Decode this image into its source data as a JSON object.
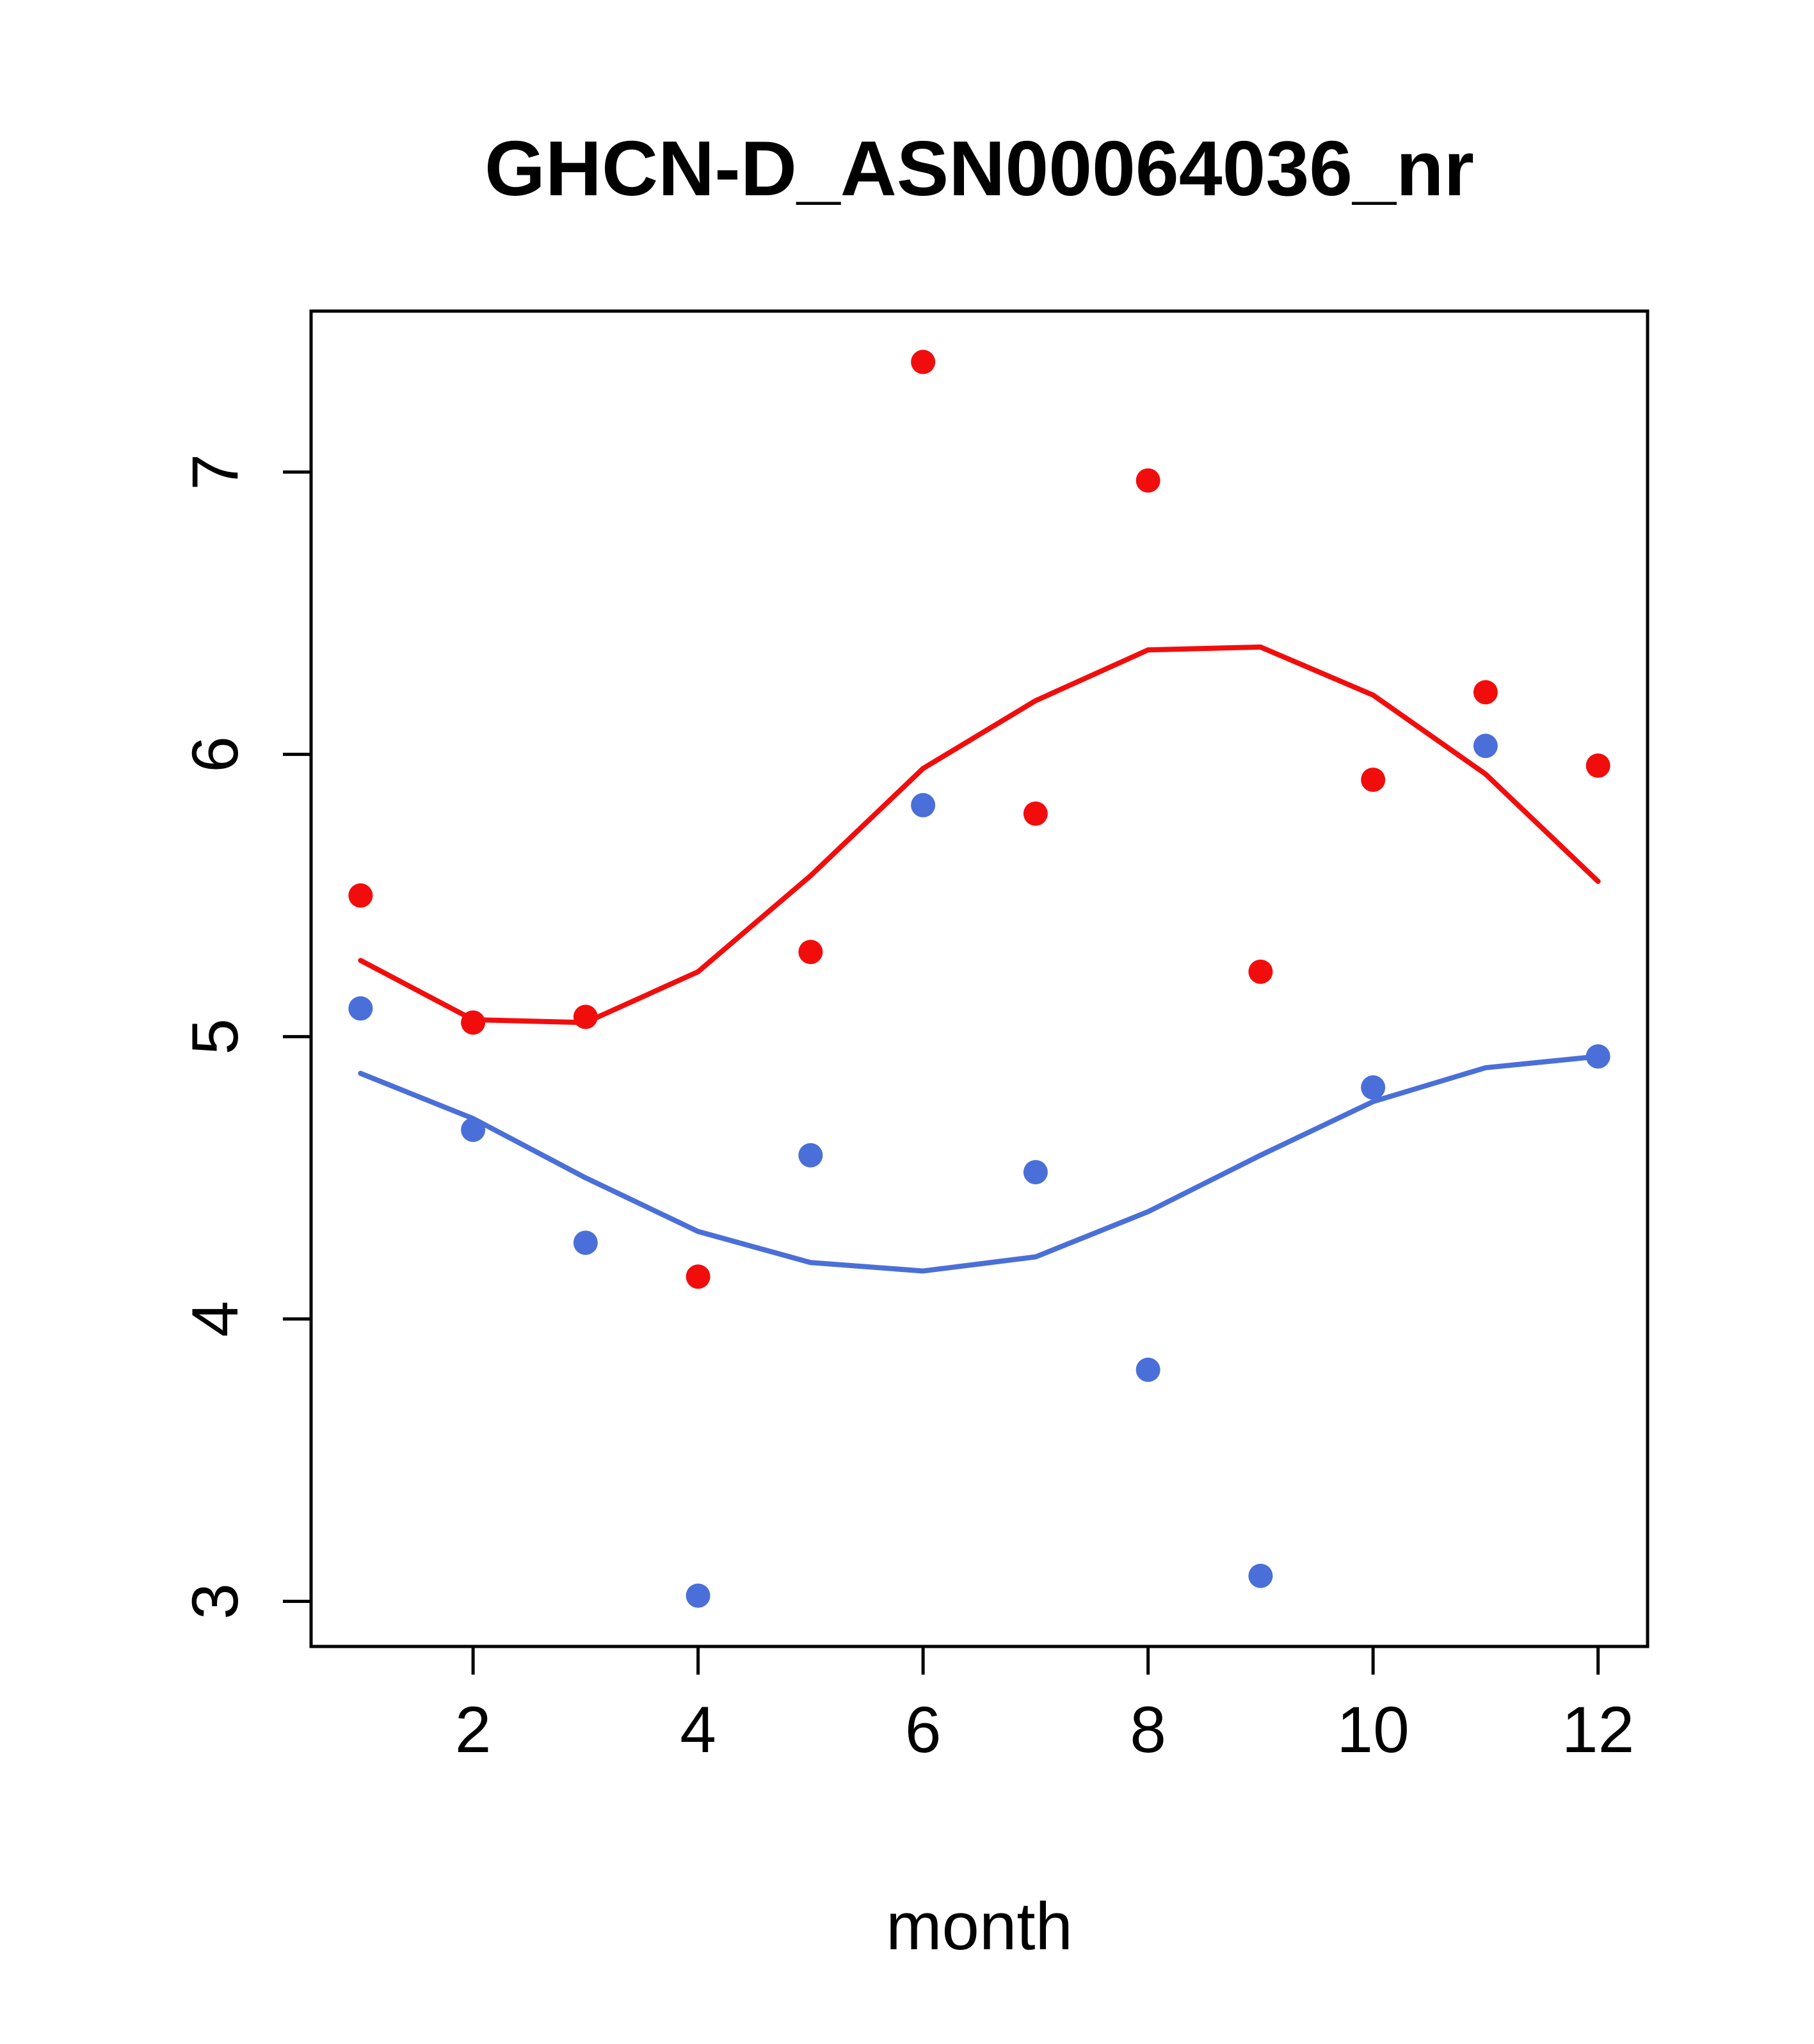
{
  "chart_data": {
    "type": "scatter",
    "title": "GHCN-D_ASN00064036_nr",
    "xlabel": "month",
    "ylabel": "",
    "xlim": [
      0.56,
      12.44
    ],
    "ylim": [
      2.84,
      7.57
    ],
    "xticks": [
      2,
      4,
      6,
      8,
      10,
      12
    ],
    "yticks": [
      3,
      4,
      5,
      6,
      7
    ],
    "x": [
      1,
      2,
      3,
      4,
      5,
      6,
      7,
      8,
      9,
      10,
      11,
      12
    ],
    "grid": "off",
    "legend": "none",
    "colors": {
      "red": "#f20d0d",
      "blue": "#4a6fd8"
    },
    "series": [
      {
        "name": "red-points",
        "kind": "points",
        "color": "#f20d0d",
        "values": [
          5.5,
          5.05,
          5.07,
          4.15,
          5.3,
          7.39,
          5.79,
          6.97,
          5.23,
          5.91,
          6.22,
          5.96
        ]
      },
      {
        "name": "blue-points",
        "kind": "points",
        "color": "#4a6fd8",
        "values": [
          5.1,
          4.67,
          4.27,
          3.02,
          4.58,
          5.82,
          4.52,
          3.82,
          3.09,
          4.82,
          6.03,
          4.93
        ]
      },
      {
        "name": "red-smooth-line",
        "kind": "line",
        "color": "#f20d0d",
        "values": [
          5.27,
          5.06,
          5.05,
          5.23,
          5.57,
          5.95,
          6.19,
          6.37,
          6.38,
          6.21,
          5.93,
          5.55
        ]
      },
      {
        "name": "blue-smooth-line",
        "kind": "line",
        "color": "#4a6fd8",
        "values": [
          4.87,
          4.71,
          4.5,
          4.31,
          4.2,
          4.17,
          4.22,
          4.38,
          4.58,
          4.77,
          4.89,
          4.93
        ]
      }
    ]
  }
}
